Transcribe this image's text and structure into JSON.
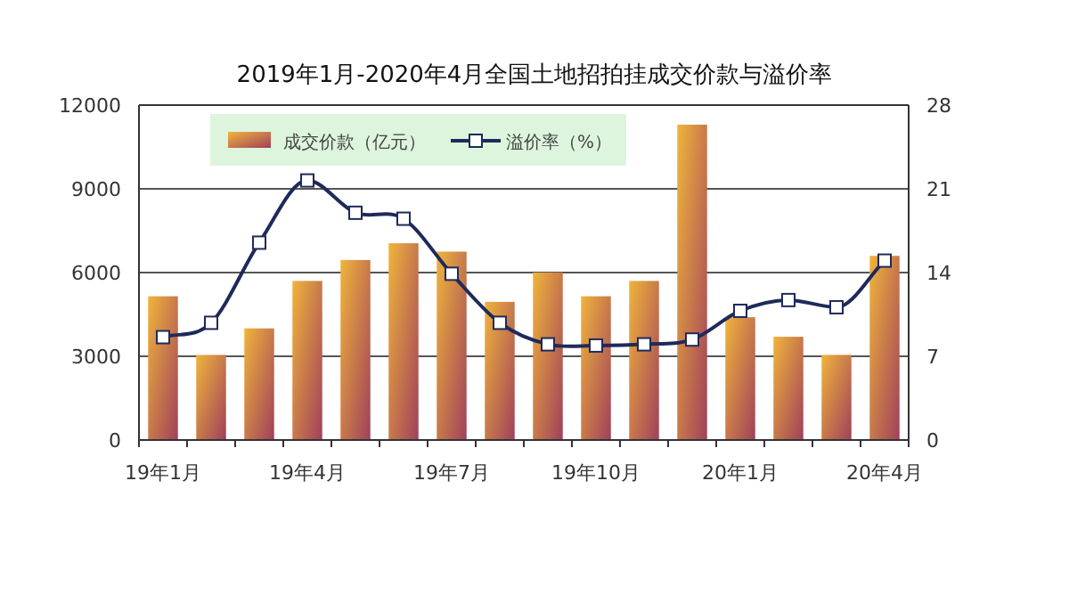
{
  "chart_data": {
    "type": "bar",
    "title": "2019年1月-2020年4月全国土地招拍挂成交价款与溢价率",
    "categories": [
      "19年1月",
      null,
      null,
      "19年4月",
      null,
      null,
      "19年7月",
      null,
      null,
      "19年10月",
      null,
      null,
      "20年1月",
      null,
      null,
      "20年4月"
    ],
    "series": [
      {
        "name": "成交价款（亿元）",
        "color": "#f0b43c",
        "values": [
          5150,
          3050,
          4000,
          5700,
          6450,
          7050,
          6750,
          4950,
          6000,
          5150,
          5700,
          11300,
          4400,
          3700,
          3050,
          6600
        ]
      },
      {
        "name": "溢价率（%）",
        "type": "line",
        "axis": "y2",
        "color": "#1f2a5a",
        "marker": "square",
        "values": [
          8.6,
          9.8,
          16.5,
          21.7,
          19.0,
          18.5,
          13.9,
          9.8,
          8.0,
          7.9,
          8.0,
          8.4,
          10.8,
          11.7,
          11.1,
          15.0
        ]
      }
    ],
    "ylim": [
      0,
      12000
    ],
    "yticks": [
      0,
      3000,
      6000,
      9000,
      12000
    ],
    "y2lim": [
      0,
      28
    ],
    "y2ticks": [
      0,
      7,
      14,
      21,
      28
    ],
    "grid": "y",
    "legend": "top left"
  }
}
